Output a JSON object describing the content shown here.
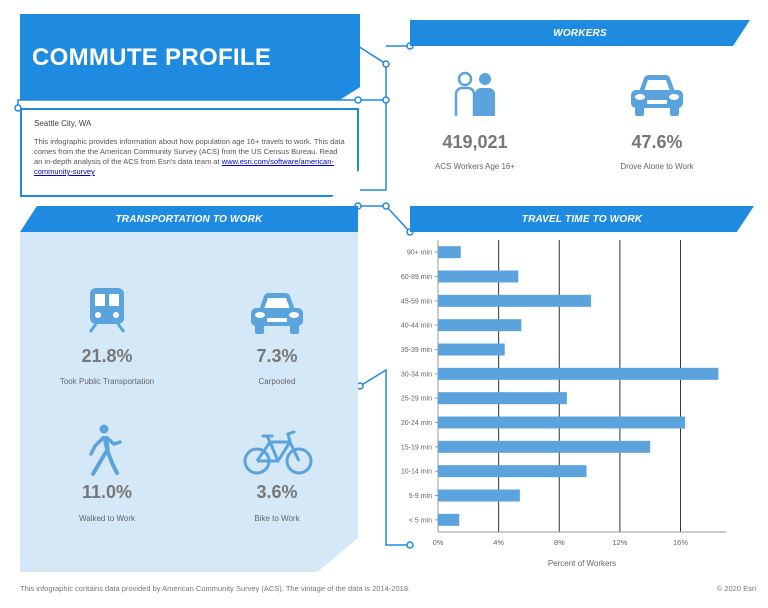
{
  "title": "COMMUTE PROFILE",
  "description": {
    "location": "Seattle City, WA",
    "text": "This infographic provides information about how population age 16+ travels to work. This data comes from the the American Community Survey (ACS) from the US Census Bureau. Read an in-depth analysis of the ACS from Esri's data team at ",
    "link_text": "www.esri.com/software/american-community-survey"
  },
  "workers": {
    "header": "WORKERS",
    "stats": [
      {
        "value": "419,021",
        "label": "ACS Workers Age 16+",
        "icon": "people-icon"
      },
      {
        "value": "47.6%",
        "label": "Drove Alone to Work",
        "icon": "car-icon"
      }
    ]
  },
  "transport": {
    "header": "TRANSPORTATION TO WORK",
    "stats": [
      {
        "value": "21.8%",
        "label": "Took Public Transportation",
        "icon": "train-icon"
      },
      {
        "value": "7.3%",
        "label": "Carpooled",
        "icon": "car-icon"
      },
      {
        "value": "11.0%",
        "label": "Walked to Work",
        "icon": "walking-person-icon"
      },
      {
        "value": "3.6%",
        "label": "Bike to Work",
        "icon": "bicycle-icon"
      }
    ]
  },
  "travel": {
    "header": "TRAVEL TIME TO WORK"
  },
  "chart_data": {
    "type": "bar",
    "orientation": "horizontal",
    "categories": [
      "90+ min",
      "60-89 min",
      "45-59 min",
      "40-44 min",
      "35-39 min",
      "30-34 min",
      "25-29 min",
      "20-24 min",
      "15-19 min",
      "10-14 min",
      "5-9 min",
      "< 5 min"
    ],
    "values": [
      1.5,
      5.3,
      10.1,
      5.5,
      4.4,
      18.5,
      8.5,
      16.3,
      14.0,
      9.8,
      5.4,
      1.4
    ],
    "xlabel": "Percent of Workers",
    "ylabel": "",
    "xlim": [
      0,
      19
    ],
    "xticks": [
      "0%",
      "4%",
      "8%",
      "12%",
      "16%"
    ],
    "xtick_values": [
      0,
      4,
      8,
      12,
      16
    ],
    "grid": true,
    "bar_color": "#5ba3dc"
  },
  "colors": {
    "accent": "#1f8be0",
    "panel": "#d4e8f8",
    "icon": "#5ba3dc"
  },
  "footer": {
    "left": "This infographic contains data provided by American Community Survey (ACS). The vintage of the data is 2014-2018.",
    "right": "© 2020 Esri"
  }
}
